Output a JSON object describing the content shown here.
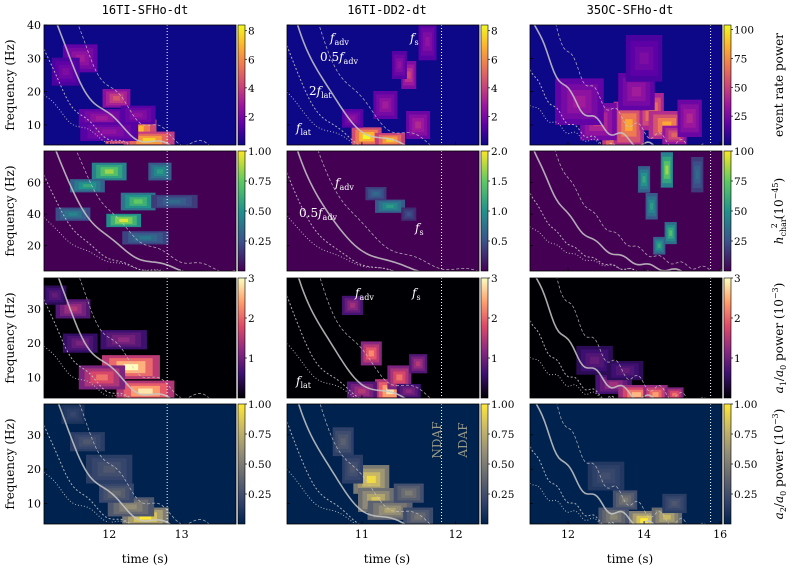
{
  "chart_data": {
    "type": "heatmap",
    "columns": [
      {
        "title": "16TI-SFHo-dt",
        "x_ticks": [
          "12",
          "13"
        ],
        "x_tick_values": [
          12,
          13
        ],
        "xlim": [
          11.1,
          13.75
        ],
        "vline": 12.8,
        "annotations": [
          {
            "row": 0,
            "text": "f",
            "sub": "lat",
            "x": 0,
            "y": 0
          }
        ]
      },
      {
        "title": "16TI-DD2-dt",
        "x_ticks": [
          "11",
          "12"
        ],
        "x_tick_values": [
          11,
          12
        ],
        "xlim": [
          10.2,
          12.25
        ],
        "vline": 11.85,
        "annotations": []
      },
      {
        "title": "35OC-SFHo-dt",
        "x_ticks": [
          "12",
          "14",
          "16"
        ],
        "x_tick_values": [
          12,
          14,
          16
        ],
        "xlim": [
          11.0,
          16.05
        ],
        "vline": 15.75,
        "annotations": []
      }
    ],
    "rows": [
      {
        "ylabel": "frequency (Hz)",
        "y_ticks": [
          "10",
          "20",
          "30",
          "40"
        ],
        "y_tick_values": [
          10,
          20,
          30,
          40
        ],
        "ylim": [
          4,
          40
        ],
        "colorbar_label_main": "event rate power",
        "colormap": "plasma-like",
        "colorbars": [
          {
            "ticks": [
              "2",
              "4",
              "6",
              "8"
            ],
            "values": [
              2,
              4,
              6,
              8
            ],
            "min": 0,
            "max": 8.4
          },
          {
            "ticks": [
              "2",
              "4",
              "6",
              "8"
            ],
            "values": [
              2,
              4,
              6,
              8
            ],
            "min": 0,
            "max": 8.4
          },
          {
            "ticks": [
              "25",
              "50",
              "75",
              "100"
            ],
            "values": [
              25,
              50,
              75,
              100
            ],
            "min": 0,
            "max": 104
          }
        ]
      },
      {
        "ylabel": "frequency (Hz)",
        "y_ticks": [
          "20",
          "40",
          "60"
        ],
        "y_tick_values": [
          20,
          40,
          60
        ],
        "ylim": [
          4,
          80
        ],
        "colorbar_label_main": "h",
        "colorbar_label_sup": "2",
        "colorbar_label_sub": "char",
        "colorbar_label_unit": "(10",
        "colorbar_label_exp": "−45",
        "colormap": "viridis-like",
        "colorbars": [
          {
            "ticks": [
              "0.25",
              "0.50",
              "0.75",
              "1.00"
            ],
            "values": [
              0.25,
              0.5,
              0.75,
              1.0
            ],
            "min": 0,
            "max": 1.0
          },
          {
            "ticks": [
              "0.5",
              "1.0",
              "1.5",
              "2.0"
            ],
            "values": [
              0.5,
              1.0,
              1.5,
              2.0
            ],
            "min": 0,
            "max": 2.0
          },
          {
            "ticks": [
              "25",
              "50",
              "75",
              "100"
            ],
            "values": [
              25,
              50,
              75,
              100
            ],
            "min": 0,
            "max": 100
          }
        ]
      },
      {
        "ylabel": "frequency (Hz)",
        "y_ticks": [
          "10",
          "20",
          "30"
        ],
        "y_tick_values": [
          10,
          20,
          30
        ],
        "ylim": [
          4,
          39
        ],
        "colorbar_label_main": "a",
        "colorbar_label_unit": "power (10",
        "colorbar_label_exp": "−3",
        "colormap": "magma-like",
        "colorbars": [
          {
            "ticks": [
              "1",
              "2",
              "3"
            ],
            "values": [
              1,
              2,
              3
            ],
            "min": 0,
            "max": 3.0
          },
          {
            "ticks": [
              "1",
              "2",
              "3"
            ],
            "values": [
              1,
              2,
              3
            ],
            "min": 0,
            "max": 3.0
          },
          {
            "ticks": [
              "1",
              "2",
              "3"
            ],
            "values": [
              1,
              2,
              3
            ],
            "min": 0,
            "max": 3.0
          }
        ]
      },
      {
        "ylabel": "frequency (Hz)",
        "y_ticks": [
          "10",
          "20",
          "30"
        ],
        "y_tick_values": [
          10,
          20,
          30
        ],
        "ylim": [
          4,
          39
        ],
        "colorbar_label_main": "a",
        "colorbar_label_unit": "power (10",
        "colorbar_label_exp": "−3",
        "colormap": "cividis-like",
        "colorbars": [
          {
            "ticks": [
              "0.25",
              "0.50",
              "0.75",
              "1.00"
            ],
            "values": [
              0.25,
              0.5,
              0.75,
              1.0
            ],
            "min": 0,
            "max": 1.0
          },
          {
            "ticks": [
              "0.25",
              "0.50",
              "0.75",
              "1.00"
            ],
            "values": [
              0.25,
              0.5,
              0.75,
              1.0
            ],
            "min": 0,
            "max": 1.0
          },
          {
            "ticks": [
              "0.25",
              "0.50",
              "0.75",
              "1.00"
            ],
            "values": [
              0.25,
              0.5,
              0.75,
              1.0
            ],
            "min": 0,
            "max": 1.0
          }
        ]
      }
    ],
    "xlabel": "time (s)",
    "regions": {
      "left": "NDAF",
      "right": "ADAF"
    },
    "labels": {
      "fadv": "adv",
      "fs": "s",
      "flat": "lat",
      "half": "0.5",
      "two": "2",
      "f": "f",
      "a0": "0",
      "a1": "1",
      "a2": "2"
    },
    "colors": {
      "plasma": [
        "#0d0887",
        "#5c01a6",
        "#9c179e",
        "#cc4778",
        "#ed7953",
        "#fdb42f",
        "#f0f921"
      ],
      "viridis": [
        "#440154",
        "#3b528b",
        "#21918c",
        "#5ec962",
        "#fde725"
      ],
      "magma": [
        "#000004",
        "#3b0f70",
        "#8c2981",
        "#de4968",
        "#fe9f6d",
        "#fcfdbf"
      ],
      "cividis": [
        "#00224e",
        "#35456c",
        "#666970",
        "#948e77",
        "#c8b866",
        "#fee838"
      ],
      "curve": "#c8c8c8"
    },
    "blobs": [
      [
        [
          [
            12.3,
            8,
            0.22,
            2.6,
            1.0
          ],
          [
            12.55,
            5.5,
            0.22,
            1.8,
            0.9
          ],
          [
            12.1,
            18,
            0.12,
            2,
            0.55
          ],
          [
            11.9,
            12,
            0.2,
            2,
            0.35
          ],
          [
            11.6,
            30,
            0.15,
            3,
            0.35
          ],
          [
            12.0,
            8,
            0.25,
            2,
            0.3
          ],
          [
            11.4,
            26,
            0.12,
            3,
            0.25
          ],
          [
            12.4,
            13,
            0.15,
            2,
            0.3
          ]
        ],
        [
          [
            11.05,
            6.5,
            0.1,
            2,
            1.0
          ],
          [
            11.3,
            5.5,
            0.1,
            1.5,
            0.9
          ],
          [
            11.5,
            25,
            0.05,
            3,
            0.5
          ],
          [
            11.6,
            10,
            0.08,
            3,
            0.4
          ],
          [
            11.25,
            16,
            0.08,
            3,
            0.35
          ],
          [
            10.9,
            12,
            0.07,
            2,
            0.3
          ],
          [
            11.7,
            35,
            0.06,
            4,
            0.3
          ],
          [
            11.4,
            28,
            0.05,
            3,
            0.3
          ]
        ],
        [
          [
            13.3,
            8,
            0.25,
            4,
            0.9
          ],
          [
            13.6,
            10,
            0.25,
            5,
            0.8
          ],
          [
            14.2,
            14,
            0.2,
            4,
            0.75
          ],
          [
            14.6,
            10,
            0.3,
            3,
            0.8
          ],
          [
            14.8,
            7,
            0.2,
            2,
            0.6
          ],
          [
            12.8,
            11,
            0.3,
            4,
            0.45
          ],
          [
            13.8,
            20,
            0.3,
            4,
            0.35
          ],
          [
            12.3,
            17,
            0.4,
            5,
            0.35
          ],
          [
            15.2,
            12,
            0.2,
            4,
            0.4
          ],
          [
            14.0,
            30,
            0.3,
            5,
            0.25
          ]
        ]
      ],
      [
        [
          [
            12.0,
            67,
            0.15,
            4,
            0.85
          ],
          [
            12.4,
            48,
            0.15,
            4,
            0.75
          ],
          [
            12.2,
            36,
            0.15,
            3,
            0.95
          ],
          [
            11.7,
            58,
            0.15,
            3,
            0.6
          ],
          [
            12.7,
            67,
            0.1,
            4,
            0.55
          ],
          [
            12.5,
            25,
            0.2,
            3,
            0.4
          ],
          [
            11.5,
            40,
            0.15,
            3,
            0.45
          ],
          [
            12.9,
            48,
            0.2,
            3,
            0.35
          ]
        ],
        [
          [
            11.3,
            45,
            0.1,
            3,
            0.55
          ],
          [
            11.15,
            53,
            0.07,
            3,
            0.35
          ],
          [
            11.5,
            40,
            0.05,
            3,
            0.25
          ]
        ],
        [
          [
            14.0,
            62,
            0.1,
            6,
            0.6
          ],
          [
            14.6,
            68,
            0.1,
            8,
            0.85
          ],
          [
            14.2,
            45,
            0.1,
            6,
            0.55
          ],
          [
            14.7,
            28,
            0.1,
            5,
            0.7
          ],
          [
            14.4,
            20,
            0.1,
            4,
            0.6
          ],
          [
            15.4,
            65,
            0.1,
            8,
            0.35
          ]
        ]
      ],
      [
        [
          [
            12.3,
            13,
            0.25,
            2.5,
            1.0
          ],
          [
            12.5,
            6,
            0.25,
            2.2,
            0.95
          ],
          [
            11.9,
            10,
            0.2,
            2.5,
            0.7
          ],
          [
            11.5,
            30,
            0.15,
            2,
            0.5
          ],
          [
            12.2,
            21,
            0.2,
            2,
            0.4
          ],
          [
            11.6,
            20,
            0.15,
            2,
            0.35
          ],
          [
            11.25,
            34,
            0.1,
            2,
            0.3
          ]
        ],
        [
          [
            11.1,
            17,
            0.07,
            2.5,
            0.75
          ],
          [
            11.3,
            6,
            0.1,
            2.5,
            0.95
          ],
          [
            11.4,
            10,
            0.08,
            2.5,
            0.7
          ],
          [
            11.6,
            14,
            0.06,
            2,
            0.5
          ],
          [
            10.9,
            31,
            0.07,
            2,
            0.45
          ],
          [
            11.0,
            6,
            0.1,
            2,
            0.5
          ],
          [
            11.5,
            6,
            0.08,
            1.5,
            0.4
          ]
        ],
        [
          [
            13.2,
            8,
            0.3,
            2,
            0.45
          ],
          [
            13.8,
            5,
            0.3,
            2,
            0.85
          ],
          [
            14.3,
            5,
            0.2,
            2,
            0.8
          ],
          [
            14.8,
            5,
            0.15,
            1.5,
            0.7
          ],
          [
            12.7,
            15,
            0.3,
            3,
            0.3
          ],
          [
            13.5,
            12,
            0.3,
            2,
            0.3
          ]
        ]
      ],
      [
        [
          [
            12.5,
            6,
            0.2,
            2,
            1.0
          ],
          [
            12.3,
            9,
            0.2,
            2,
            0.6
          ],
          [
            12.1,
            13,
            0.15,
            2,
            0.4
          ],
          [
            12.0,
            20,
            0.2,
            3,
            0.3
          ],
          [
            11.7,
            28,
            0.15,
            2,
            0.3
          ],
          [
            11.5,
            36,
            0.1,
            2,
            0.2
          ]
        ],
        [
          [
            11.1,
            17,
            0.12,
            3,
            0.95
          ],
          [
            11.15,
            11,
            0.12,
            2.5,
            0.85
          ],
          [
            11.3,
            8,
            0.15,
            2,
            0.7
          ],
          [
            11.5,
            13,
            0.1,
            2,
            0.5
          ],
          [
            10.8,
            28,
            0.07,
            3,
            0.35
          ],
          [
            11.6,
            6,
            0.1,
            2,
            0.45
          ],
          [
            10.9,
            20,
            0.07,
            3,
            0.3
          ]
        ],
        [
          [
            13.2,
            6,
            0.25,
            2,
            0.55
          ],
          [
            14.0,
            5,
            0.25,
            2,
            1.0
          ],
          [
            14.6,
            6,
            0.25,
            2,
            0.8
          ],
          [
            13.5,
            11,
            0.2,
            2,
            0.5
          ],
          [
            13.0,
            18,
            0.3,
            3,
            0.25
          ],
          [
            14.8,
            10,
            0.2,
            2,
            0.3
          ]
        ]
      ]
    ]
  }
}
